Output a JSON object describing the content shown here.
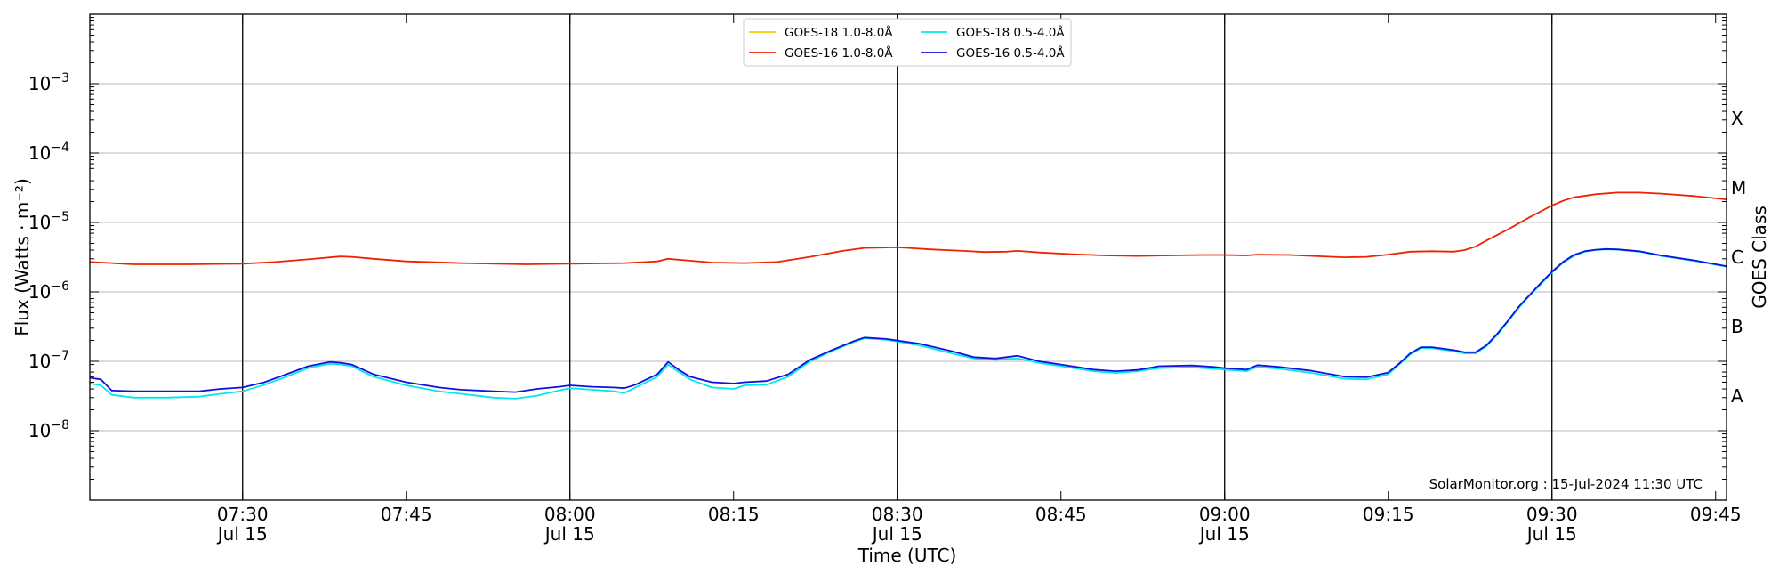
{
  "chart_data": {
    "type": "line",
    "xlabel": "Time (UTC)",
    "ylabel": "Flux (Watts · m⁻²)",
    "ylabel_right": "GOES Class",
    "y_scale": "log",
    "ylim": [
      1e-09,
      0.01
    ],
    "xlim": [
      "2024-07-15 07:16",
      "2024-07-15 09:46"
    ],
    "grid": "horizontal",
    "legend_placement": "top-center",
    "watermark": "SolarMonitor.org : 15-Jul-2024 11:30 UTC",
    "y_ticks": [
      {
        "value": 1e-08,
        "base": "10",
        "exp": "−8"
      },
      {
        "value": 1e-07,
        "base": "10",
        "exp": "−7"
      },
      {
        "value": 1e-06,
        "base": "10",
        "exp": "−6"
      },
      {
        "value": 1e-05,
        "base": "10",
        "exp": "−5"
      },
      {
        "value": 0.0001,
        "base": "10",
        "exp": "−4"
      },
      {
        "value": 0.001,
        "base": "10",
        "exp": "−3"
      }
    ],
    "x_ticks": [
      {
        "time": "07:30",
        "l1": "07:30",
        "l2": "Jul 15",
        "vline": true
      },
      {
        "time": "07:45",
        "l1": "07:45",
        "l2": "",
        "vline": false
      },
      {
        "time": "08:00",
        "l1": "08:00",
        "l2": "Jul 15",
        "vline": true
      },
      {
        "time": "08:15",
        "l1": "08:15",
        "l2": "",
        "vline": false
      },
      {
        "time": "08:30",
        "l1": "08:30",
        "l2": "Jul 15",
        "vline": true
      },
      {
        "time": "08:45",
        "l1": "08:45",
        "l2": "",
        "vline": false
      },
      {
        "time": "09:00",
        "l1": "09:00",
        "l2": "Jul 15",
        "vline": true
      },
      {
        "time": "09:15",
        "l1": "09:15",
        "l2": "",
        "vline": false
      },
      {
        "time": "09:30",
        "l1": "09:30",
        "l2": "Jul 15",
        "vline": true
      },
      {
        "time": "09:45",
        "l1": "09:45",
        "l2": "",
        "vline": false
      }
    ],
    "goes_classes": [
      {
        "label": "A",
        "value": 3.16e-08
      },
      {
        "label": "B",
        "value": 3.16e-07
      },
      {
        "label": "C",
        "value": 3.16e-06
      },
      {
        "label": "M",
        "value": 3.16e-05
      },
      {
        "label": "X",
        "value": 0.000316
      }
    ],
    "series": [
      {
        "name": "GOES-18 1.0-8.0Å",
        "color": "#ffcc00",
        "x": [],
        "y": []
      },
      {
        "name": "GOES-16 1.0-8.0Å",
        "color": "#ee2200",
        "x": [
          "07:16",
          "07:18",
          "07:20",
          "07:25",
          "07:30",
          "07:33",
          "07:36",
          "07:39",
          "07:40",
          "07:42",
          "07:45",
          "07:50",
          "07:56",
          "08:00",
          "08:05",
          "08:07",
          "08:08",
          "08:09",
          "08:10",
          "08:13",
          "08:16",
          "08:19",
          "08:22",
          "08:25",
          "08:27",
          "08:30",
          "08:33",
          "08:36",
          "08:38",
          "08:40",
          "08:41",
          "08:43",
          "08:46",
          "08:49",
          "08:52",
          "08:55",
          "08:58",
          "09:00",
          "09:02",
          "09:03",
          "09:06",
          "09:09",
          "09:11",
          "09:13",
          "09:15",
          "09:17",
          "09:19",
          "09:21",
          "09:22",
          "09:23",
          "09:24",
          "09:26",
          "09:28",
          "09:30",
          "09:31",
          "09:32",
          "09:34",
          "09:36",
          "09:38",
          "09:40",
          "09:43",
          "09:46"
        ],
        "y": [
          2.7e-06,
          2.6e-06,
          2.5e-06,
          2.5e-06,
          2.55e-06,
          2.7e-06,
          2.95e-06,
          3.25e-06,
          3.2e-06,
          3e-06,
          2.75e-06,
          2.6e-06,
          2.5e-06,
          2.55e-06,
          2.6e-06,
          2.7e-06,
          2.75e-06,
          3e-06,
          2.9e-06,
          2.65e-06,
          2.6e-06,
          2.7e-06,
          3.2e-06,
          3.9e-06,
          4.3e-06,
          4.4e-06,
          4.1e-06,
          3.9e-06,
          3.75e-06,
          3.8e-06,
          3.9e-06,
          3.7e-06,
          3.5e-06,
          3.35e-06,
          3.3e-06,
          3.35e-06,
          3.4e-06,
          3.4e-06,
          3.35e-06,
          3.45e-06,
          3.4e-06,
          3.25e-06,
          3.15e-06,
          3.2e-06,
          3.45e-06,
          3.8e-06,
          3.85e-06,
          3.8e-06,
          4e-06,
          4.5e-06,
          5.5e-06,
          8e-06,
          1.2e-05,
          1.75e-05,
          2.05e-05,
          2.3e-05,
          2.55e-05,
          2.7e-05,
          2.7e-05,
          2.6e-05,
          2.4e-05,
          2.15e-05
        ]
      },
      {
        "name": "GOES-18 0.5-4.0Å",
        "color": "#00e8ee",
        "x": [
          "07:16",
          "07:17",
          "07:18",
          "07:20",
          "07:23",
          "07:26",
          "07:28",
          "07:30",
          "07:32",
          "07:34",
          "07:36",
          "07:38",
          "07:39",
          "07:40",
          "07:42",
          "07:45",
          "07:48",
          "07:50",
          "07:53",
          "07:55",
          "07:57",
          "07:59",
          "08:00",
          "08:02",
          "08:04",
          "08:05",
          "08:06",
          "08:08",
          "08:09",
          "08:10",
          "08:11",
          "08:13",
          "08:15",
          "08:16",
          "08:18",
          "08:20",
          "08:22",
          "08:24",
          "08:26",
          "08:27",
          "08:29",
          "08:32",
          "08:35",
          "08:37",
          "08:39",
          "08:41",
          "08:43",
          "08:45",
          "08:48",
          "08:50",
          "08:52",
          "08:54",
          "08:57",
          "08:59",
          "09:00",
          "09:02",
          "09:03",
          "09:05",
          "09:08",
          "09:11",
          "09:13",
          "09:15",
          "09:16",
          "09:17",
          "09:18",
          "09:19",
          "09:21",
          "09:22",
          "09:23",
          "09:24",
          "09:25",
          "09:26",
          "09:27",
          "09:28",
          "09:29",
          "09:30",
          "09:31",
          "09:32",
          "09:33",
          "09:34",
          "09:35",
          "09:36",
          "09:38",
          "09:40",
          "09:43",
          "09:46"
        ],
        "y": [
          4.8e-08,
          4.5e-08,
          3.3e-08,
          3e-08,
          3e-08,
          3.1e-08,
          3.4e-08,
          3.7e-08,
          4.6e-08,
          6e-08,
          8e-08,
          9.2e-08,
          9e-08,
          8.5e-08,
          6e-08,
          4.5e-08,
          3.7e-08,
          3.4e-08,
          3e-08,
          2.9e-08,
          3.2e-08,
          3.8e-08,
          4.1e-08,
          3.9e-08,
          3.7e-08,
          3.5e-08,
          4.2e-08,
          6e-08,
          9e-08,
          7e-08,
          5.5e-08,
          4.2e-08,
          4e-08,
          4.5e-08,
          4.6e-08,
          6e-08,
          1e-07,
          1.4e-07,
          1.9e-07,
          2.15e-07,
          2.05e-07,
          1.7e-07,
          1.3e-07,
          1.1e-07,
          1.05e-07,
          1.1e-07,
          9.5e-08,
          8.5e-08,
          7.2e-08,
          6.8e-08,
          7.2e-08,
          8e-08,
          8.2e-08,
          7.8e-08,
          7.6e-08,
          7.2e-08,
          8.3e-08,
          7.8e-08,
          6.8e-08,
          5.6e-08,
          5.5e-08,
          6.5e-08,
          9e-08,
          1.25e-07,
          1.55e-07,
          1.55e-07,
          1.4e-07,
          1.3e-07,
          1.3e-07,
          1.65e-07,
          2.4e-07,
          3.8e-07,
          6e-07,
          9e-07,
          1.3e-06,
          1.9e-06,
          2.6e-06,
          3.3e-06,
          3.8e-06,
          4e-06,
          4.1e-06,
          4.05e-06,
          3.8e-06,
          3.3e-06,
          2.8e-06,
          2.3e-06
        ]
      },
      {
        "name": "GOES-16 0.5-4.0Å",
        "color": "#1111dd",
        "x": [
          "07:16",
          "07:17",
          "07:18",
          "07:20",
          "07:23",
          "07:26",
          "07:28",
          "07:30",
          "07:32",
          "07:34",
          "07:36",
          "07:38",
          "07:39",
          "07:40",
          "07:42",
          "07:45",
          "07:48",
          "07:50",
          "07:53",
          "07:55",
          "07:57",
          "07:59",
          "08:00",
          "08:02",
          "08:04",
          "08:05",
          "08:06",
          "08:08",
          "08:09",
          "08:10",
          "08:11",
          "08:13",
          "08:15",
          "08:16",
          "08:18",
          "08:20",
          "08:22",
          "08:24",
          "08:26",
          "08:27",
          "08:29",
          "08:32",
          "08:35",
          "08:37",
          "08:39",
          "08:41",
          "08:43",
          "08:45",
          "08:48",
          "08:50",
          "08:52",
          "08:54",
          "08:57",
          "08:59",
          "09:00",
          "09:02",
          "09:03",
          "09:05",
          "09:08",
          "09:11",
          "09:13",
          "09:15",
          "09:16",
          "09:17",
          "09:18",
          "09:19",
          "09:21",
          "09:22",
          "09:23",
          "09:24",
          "09:25",
          "09:26",
          "09:27",
          "09:28",
          "09:29",
          "09:30",
          "09:31",
          "09:32",
          "09:33",
          "09:34",
          "09:35",
          "09:36",
          "09:38",
          "09:40",
          "09:43",
          "09:46"
        ],
        "y": [
          5.8e-08,
          5.5e-08,
          3.8e-08,
          3.7e-08,
          3.7e-08,
          3.7e-08,
          4e-08,
          4.2e-08,
          5e-08,
          6.5e-08,
          8.5e-08,
          9.8e-08,
          9.5e-08,
          9e-08,
          6.5e-08,
          5e-08,
          4.2e-08,
          3.9e-08,
          3.7e-08,
          3.6e-08,
          4e-08,
          4.3e-08,
          4.5e-08,
          4.3e-08,
          4.2e-08,
          4.1e-08,
          4.6e-08,
          6.5e-08,
          9.8e-08,
          7.5e-08,
          6e-08,
          5e-08,
          4.8e-08,
          5e-08,
          5.2e-08,
          6.5e-08,
          1.05e-07,
          1.45e-07,
          1.95e-07,
          2.2e-07,
          2.1e-07,
          1.8e-07,
          1.4e-07,
          1.15e-07,
          1.1e-07,
          1.2e-07,
          1e-07,
          9e-08,
          7.6e-08,
          7.2e-08,
          7.5e-08,
          8.5e-08,
          8.7e-08,
          8.3e-08,
          8e-08,
          7.6e-08,
          8.8e-08,
          8.3e-08,
          7.3e-08,
          6e-08,
          5.9e-08,
          6.9e-08,
          9.3e-08,
          1.3e-07,
          1.6e-07,
          1.6e-07,
          1.45e-07,
          1.35e-07,
          1.35e-07,
          1.7e-07,
          2.5e-07,
          3.9e-07,
          6.2e-07,
          9.2e-07,
          1.35e-06,
          1.95e-06,
          2.7e-06,
          3.4e-06,
          3.85e-06,
          4.05e-06,
          4.15e-06,
          4.1e-06,
          3.85e-06,
          3.35e-06,
          2.85e-06,
          2.35e-06
        ]
      }
    ]
  }
}
